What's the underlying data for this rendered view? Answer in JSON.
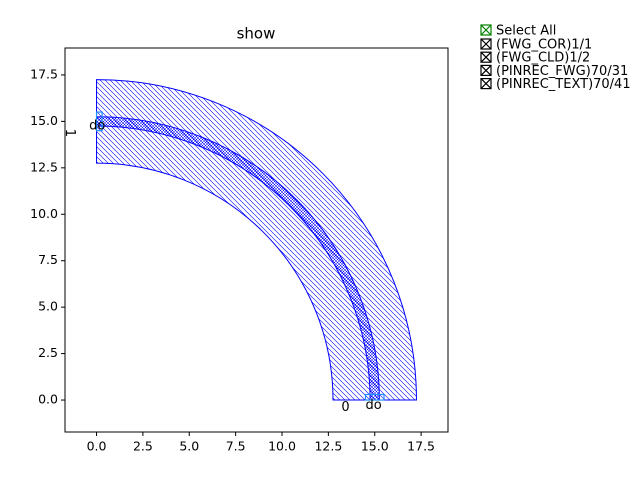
{
  "chart_data": {
    "type": "polygon",
    "title": "show",
    "xlim": [
      -1.7,
      18.95
    ],
    "ylim": [
      -1.72,
      18.95
    ],
    "xticks": [
      {
        "value": 0,
        "label": "0.0"
      },
      2.5,
      {
        "value": 5,
        "label": "5.0"
      },
      7.5,
      {
        "value": 10,
        "label": "10.0"
      },
      12.5,
      {
        "value": 15,
        "label": "15.0"
      },
      17.5
    ],
    "yticks": [
      {
        "value": 0,
        "label": "0.0"
      },
      2.5,
      {
        "value": 5,
        "label": "5.0"
      },
      7.5,
      {
        "value": 10,
        "label": "10.0"
      },
      12.5,
      {
        "value": 15,
        "label": "15.0"
      },
      17.5
    ],
    "select_all": "Select All",
    "series": [
      {
        "name": "(FWG_COR)1/1",
        "color": "#0000ff",
        "inner_radius": 14.75,
        "outer_radius": 15.25
      },
      {
        "name": "(FWG_CLD)1/2",
        "color": "#0000ff",
        "inner_radius": 12.75,
        "outer_radius": 17.25
      },
      {
        "name": "(PINREC_FWG)70/31",
        "color": "#1e90ff",
        "x": [
          0,
          15
        ],
        "y": [
          15,
          0
        ]
      },
      {
        "name": "(PINREC_TEXT)70/41",
        "color": "#000000",
        "labels": [
          "1",
          "do",
          "0",
          "do"
        ],
        "x": [
          -1.45,
          -0.4,
          13.2,
          14.5
        ],
        "y": [
          14.6,
          14.75,
          -0.4,
          -0.3
        ]
      }
    ]
  }
}
